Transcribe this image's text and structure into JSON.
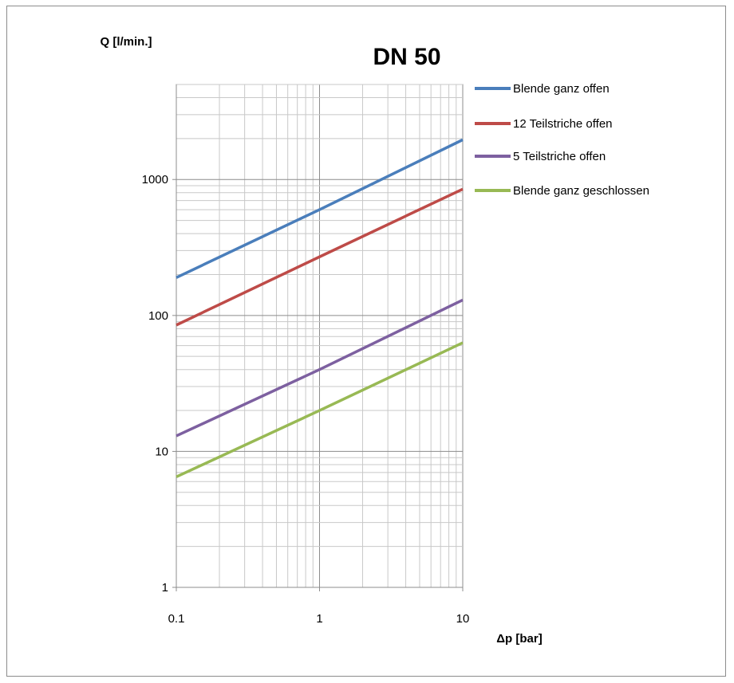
{
  "chart_data": {
    "type": "line",
    "title": "DN 50",
    "xlabel": "Δp [bar]",
    "ylabel": "Q [l/min.]",
    "x_scale": "log",
    "y_scale": "log",
    "xlim": [
      0.1,
      10
    ],
    "ylim": [
      1,
      5000
    ],
    "x_ticks": [
      0.1,
      1,
      10
    ],
    "x_tick_labels": [
      "0.1",
      "1",
      "10"
    ],
    "y_ticks": [
      1,
      10,
      100,
      1000
    ],
    "y_tick_labels": [
      "1",
      "10",
      "100",
      "1000"
    ],
    "grid": true,
    "legend_position": "right",
    "series": [
      {
        "name": "Blende ganz offen",
        "color": "#4a7ebb",
        "x": [
          0.1,
          1,
          10
        ],
        "y": [
          190,
          600,
          1960
        ]
      },
      {
        "name": "12 Teilstriche offen",
        "color": "#be4b48",
        "x": [
          0.1,
          1,
          10
        ],
        "y": [
          85,
          270,
          850
        ]
      },
      {
        "name": "5 Teilstriche offen",
        "color": "#7d60a0",
        "x": [
          0.1,
          1,
          10
        ],
        "y": [
          13,
          40,
          130
        ]
      },
      {
        "name": "Blende ganz geschlossen",
        "color": "#98b954",
        "x": [
          0.1,
          1,
          10
        ],
        "y": [
          6.5,
          20,
          63
        ]
      }
    ]
  }
}
